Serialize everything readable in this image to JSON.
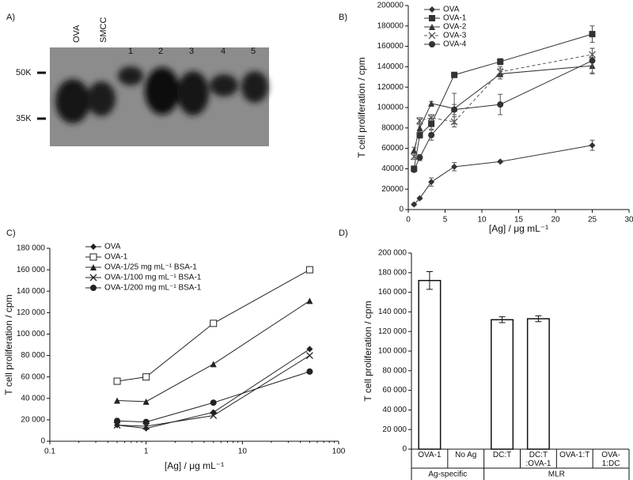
{
  "gel": {
    "panel_label": "A)",
    "lanes": [
      "OVA",
      "SMCC",
      "1",
      "2",
      "3",
      "4",
      "5"
    ],
    "markers": [
      "50K",
      "35K"
    ]
  },
  "chart_data": [
    {
      "type": "line",
      "panel_label": "B)",
      "xlabel": "[Ag] / μg mL⁻¹",
      "ylabel": "T cell proliferation / cpm",
      "xlim": [
        0,
        30
      ],
      "xticks": [
        0,
        5,
        10,
        15,
        20,
        25,
        30
      ],
      "ylim": [
        0,
        200000
      ],
      "yticks": [
        0,
        20000,
        40000,
        60000,
        80000,
        100000,
        120000,
        140000,
        160000,
        180000,
        200000
      ],
      "legend": "top-left",
      "x": [
        0.78,
        1.56,
        3.13,
        6.25,
        12.5,
        25
      ],
      "series": [
        {
          "name": "OVA",
          "color": "#333333",
          "marker": "diamond",
          "line_style": "solid",
          "values": [
            5000,
            11000,
            27000,
            42000,
            47000,
            63000
          ],
          "errors": [
            1000,
            1000,
            4000,
            4000,
            1000,
            5000
          ]
        },
        {
          "name": "OVA-1",
          "color": "#333333",
          "marker": "square",
          "line_style": "solid",
          "values": [
            40000,
            73000,
            84000,
            132000,
            145000,
            172000
          ],
          "errors": [
            2000,
            3000,
            5000,
            2000,
            3000,
            8000
          ]
        },
        {
          "name": "OVA-2",
          "color": "#333333",
          "marker": "triangle",
          "line_style": "solid",
          "values": [
            58000,
            80000,
            104000,
            99000,
            133000,
            141000
          ],
          "errors": [
            3000,
            3000,
            2000,
            15000,
            5000,
            8000
          ]
        },
        {
          "name": "OVA-3",
          "color": "#555555",
          "marker": "x",
          "line_style": "dashed",
          "values": [
            52000,
            87000,
            90000,
            86000,
            135000,
            152000
          ],
          "errors": [
            3000,
            3000,
            3000,
            5000,
            5000,
            6000
          ]
        },
        {
          "name": "OVA-4",
          "color": "#333333",
          "marker": "circle",
          "line_style": "solid",
          "values": [
            39000,
            51000,
            73000,
            98000,
            103000,
            146000
          ],
          "errors": [
            2000,
            3000,
            5000,
            5000,
            10000,
            12000
          ]
        }
      ]
    },
    {
      "type": "line",
      "panel_label": "C)",
      "xlabel": "[Ag] / μg mL⁻¹",
      "ylabel": "T cell proliferation / cpm",
      "xscale": "log",
      "xlim": [
        0.1,
        100
      ],
      "xticks": [
        0.1,
        1,
        10,
        100
      ],
      "ylim": [
        0,
        180000
      ],
      "yticks": [
        0,
        {
          "value": 20000,
          "label": "20 000"
        },
        {
          "value": 40000,
          "label": "40 000"
        },
        {
          "value": 60000,
          "label": "60 000"
        },
        {
          "value": 80000,
          "label": "80 000"
        },
        {
          "value": 100000,
          "label": "100 000"
        },
        {
          "value": 120000,
          "label": "120 000"
        },
        {
          "value": 140000,
          "label": "140 000"
        },
        {
          "value": 160000,
          "label": "160 000"
        },
        {
          "value": 180000,
          "label": "180 000"
        }
      ],
      "legend": "top-left",
      "x": [
        0.5,
        1,
        5,
        50
      ],
      "series": [
        {
          "name": "OVA",
          "color": "#222222",
          "marker": "diamond",
          "line_style": "solid",
          "values": [
            15000,
            12000,
            27000,
            86000
          ]
        },
        {
          "name": "OVA-1",
          "color": "#222222",
          "marker": "square-open",
          "line_style": "solid",
          "values": [
            56000,
            60000,
            110000,
            160000
          ]
        },
        {
          "name": "OVA-1/25 mg mL⁻¹ BSA-1",
          "color": "#222222",
          "marker": "triangle",
          "line_style": "solid",
          "values": [
            38000,
            37000,
            72000,
            131000
          ]
        },
        {
          "name": "OVA-1/100 mg mL⁻¹ BSA-1",
          "color": "#222222",
          "marker": "x",
          "line_style": "solid",
          "values": [
            15000,
            14000,
            24000,
            80000
          ]
        },
        {
          "name": "OVA-1/200 mg mL⁻¹ BSA-1",
          "color": "#222222",
          "marker": "circle",
          "line_style": "solid",
          "values": [
            19000,
            18000,
            36000,
            65000
          ]
        }
      ]
    },
    {
      "type": "bar",
      "panel_label": "D)",
      "ylabel": "T cell proliferation / cpm",
      "ylim": [
        0,
        200000
      ],
      "yticks": [
        0,
        {
          "value": 20000,
          "label": "20 000"
        },
        {
          "value": 40000,
          "label": "40 000"
        },
        {
          "value": 60000,
          "label": "60 000"
        },
        {
          "value": 80000,
          "label": "80 000"
        },
        {
          "value": 100000,
          "label": "100 000"
        },
        {
          "value": 120000,
          "label": "120 000"
        },
        {
          "value": 140000,
          "label": "140 000"
        },
        {
          "value": 160000,
          "label": "160 000"
        },
        {
          "value": 180000,
          "label": "180 000"
        },
        {
          "value": 200000,
          "label": "200 000"
        }
      ],
      "categories": [
        "OVA-1",
        "No Ag",
        "DC:T",
        "DC:T :OVA-1",
        "OVA-1:T",
        "OVA-1:DC"
      ],
      "groups": [
        "Ag-specific",
        "Ag-specific",
        "MLR",
        "MLR",
        "MLR",
        "MLR"
      ],
      "color": "#ffffff",
      "values": [
        172000,
        0,
        132000,
        133000,
        0,
        0
      ],
      "errors": [
        9000,
        0,
        3000,
        3000,
        0,
        0
      ]
    }
  ]
}
